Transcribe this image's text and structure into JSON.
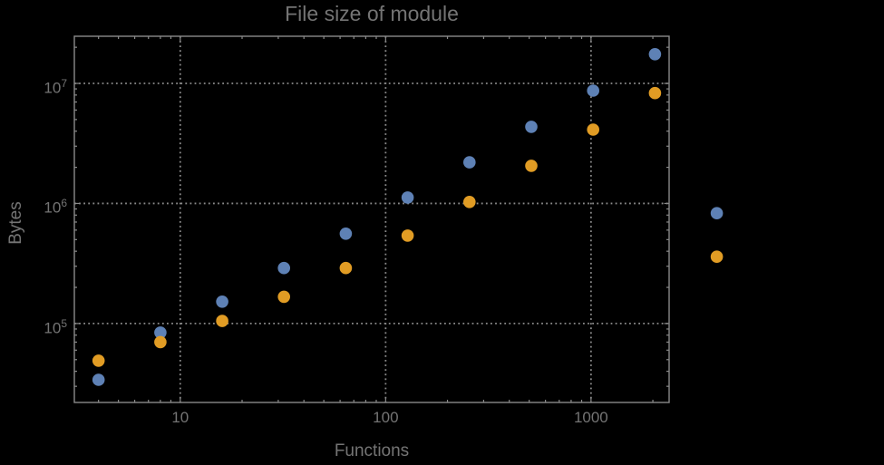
{
  "window": {
    "background": "#000000"
  },
  "chart_data": {
    "type": "scatter",
    "title": "File size of module",
    "xlabel": "Functions",
    "ylabel": "Bytes",
    "x_scale": "log",
    "y_scale": "log",
    "xlim": [
      3.05,
      2400
    ],
    "ylim": [
      22000,
      24700000
    ],
    "grid": "dotted",
    "legend": null,
    "x_major_ticks": [
      10,
      100,
      1000
    ],
    "x_tick_labels": [
      "10",
      "100",
      "1000"
    ],
    "y_major_ticks": [
      100000,
      1000000,
      10000000
    ],
    "y_tick_labels": [
      {
        "base": "10",
        "exp": "5"
      },
      {
        "base": "10",
        "exp": "6"
      },
      {
        "base": "10",
        "exp": "7"
      }
    ],
    "x": [
      4,
      8,
      16,
      32,
      64,
      128,
      256,
      512,
      1024,
      2048,
      4096
    ],
    "series": [
      {
        "name": "series-1-blue",
        "color": "#5E81B5",
        "values": [
          34000,
          84000,
          152000,
          290000,
          560000,
          1120000,
          2200000,
          4350000,
          8700000,
          17500000,
          830000
        ]
      },
      {
        "name": "series-2-orange",
        "color": "#E19C24",
        "values": [
          49000,
          70000,
          105000,
          167000,
          290000,
          540000,
          1030000,
          2060000,
          4120000,
          8300000,
          360000
        ]
      }
    ],
    "colors": {
      "frame": "#8a8a8a",
      "grid": "#8a8a8a",
      "text": "#747474",
      "background": "#000000"
    },
    "marker": {
      "shape": "circle",
      "radius": 6.8
    }
  }
}
